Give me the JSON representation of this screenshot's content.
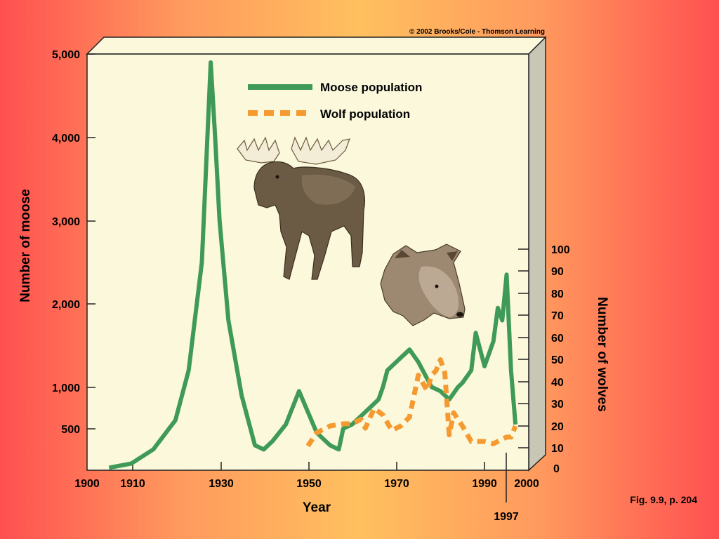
{
  "copyright": "© 2002 Brooks/Cole - Thomson Learning",
  "figure_caption": "Fig. 9.9, p. 204",
  "chart_data": {
    "type": "line",
    "xlabel": "Year",
    "ylabel_left": "Number of moose",
    "ylabel_right": "Number of wolves",
    "x_ticks": [
      "1900",
      "1910",
      "1930",
      "1950",
      "1970",
      "1990",
      "2000"
    ],
    "y_left_ticks": [
      "5,000",
      "4,000",
      "3,000",
      "2,000",
      "1,000",
      "500"
    ],
    "y_right_ticks": [
      "100",
      "90",
      "80",
      "70",
      "60",
      "50",
      "40",
      "30",
      "20",
      "10",
      "0"
    ],
    "x_annotation": "1997",
    "xlim": [
      1900,
      2000
    ],
    "ylim_left": [
      0,
      5000
    ],
    "ylim_right": [
      0,
      100
    ],
    "legend_position": "top-center",
    "series": [
      {
        "name": "Moose population",
        "axis": "left",
        "color": "#3f9a58",
        "style": "solid",
        "x": [
          1905,
          1910,
          1915,
          1920,
          1923,
          1926,
          1928,
          1929,
          1930,
          1932,
          1935,
          1938,
          1940,
          1942,
          1945,
          1948,
          1950,
          1952,
          1955,
          1957,
          1958,
          1960,
          1963,
          1966,
          1967,
          1968,
          1970,
          1972,
          1973,
          1975,
          1977,
          1978,
          1980,
          1982,
          1984,
          1985,
          1987,
          1988,
          1990,
          1992,
          1993,
          1994,
          1995,
          1996,
          1997
        ],
        "y": [
          30,
          80,
          250,
          600,
          1200,
          2500,
          4900,
          4000,
          3000,
          1800,
          900,
          300,
          250,
          350,
          550,
          950,
          700,
          450,
          300,
          250,
          500,
          550,
          700,
          850,
          1000,
          1200,
          1300,
          1400,
          1450,
          1300,
          1100,
          1000,
          950,
          850,
          1000,
          1050,
          1200,
          1650,
          1250,
          1550,
          1950,
          1800,
          2350,
          1200,
          550
        ]
      },
      {
        "name": "Wolf population",
        "axis": "right",
        "color": "#f59a30",
        "style": "dashed",
        "x": [
          1950,
          1952,
          1955,
          1958,
          1960,
          1962,
          1963,
          1965,
          1967,
          1969,
          1971,
          1973,
          1975,
          1977,
          1978,
          1979,
          1980,
          1981,
          1982,
          1983,
          1985,
          1987,
          1988,
          1990,
          1992,
          1993,
          1995,
          1996,
          1997
        ],
        "y": [
          11,
          17,
          20,
          21,
          21,
          23,
          19,
          28,
          25,
          18,
          20,
          24,
          43,
          36,
          43,
          45,
          50,
          44,
          16,
          26,
          20,
          13,
          13,
          13,
          12,
          13,
          15,
          15,
          20
        ]
      }
    ]
  }
}
